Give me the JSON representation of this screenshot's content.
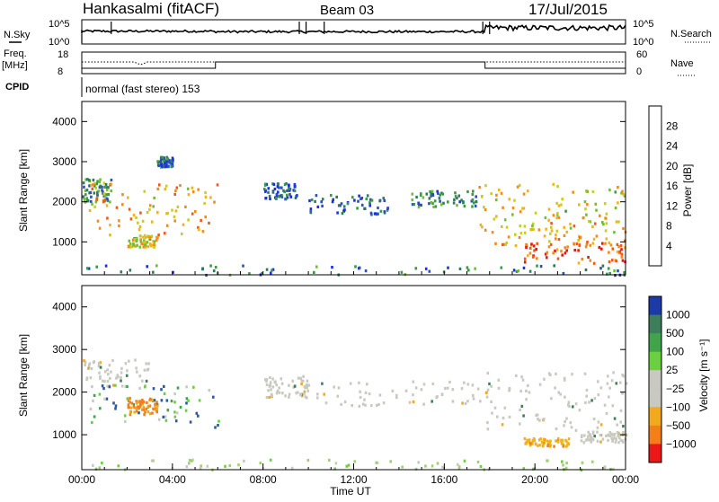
{
  "header": {
    "station": "Hankasalmi (fitACF)",
    "beam": "Beam 03",
    "date": "17/Jul/2015"
  },
  "top_panels": {
    "nsky_label": "N.Sky",
    "nsky_ticks": [
      "10^5",
      "10^0"
    ],
    "nsearch_label": "N.Search",
    "nsearch_ticks": [
      "10^5",
      "10^0"
    ],
    "freq_label_line1": "Freq.",
    "freq_label_line2": "[MHz]",
    "freq_ticks": [
      "18",
      "8"
    ],
    "nave_label": "Nave",
    "nave_ticks": [
      "60",
      "0"
    ],
    "cpid_label": "CPID",
    "cpid_value": "normal (fast stereo) 153"
  },
  "chart_data": [
    {
      "type": "heatmap",
      "name": "power",
      "ylabel": "Slant Range [km]",
      "y_ticks": [
        "1000",
        "2000",
        "3000",
        "4000"
      ],
      "y_values": [
        1000,
        2000,
        3000,
        4000
      ],
      "ylim": [
        180,
        4500
      ],
      "xlim": [
        "00:00",
        "24:00"
      ],
      "colorbar_label": "Power [dB]",
      "colorbar_ticks": [
        "4",
        "8",
        "12",
        "16",
        "20",
        "24",
        "28"
      ],
      "colorbar_colors": [
        "#1a2ee6",
        "#2b50b8",
        "#2f7a5a",
        "#3a9a48",
        "#6fbf2f",
        "#c6cf1f",
        "#f2b21a",
        "#f58a1a",
        "#ee5a18",
        "#e11a14"
      ],
      "regions": [
        {
          "t0": 0.0,
          "t1": 1.3,
          "r0": 2000,
          "r1": 2600,
          "level": 0.3
        },
        {
          "t0": 0.3,
          "t1": 6.0,
          "r0": 1200,
          "r1": 2500,
          "level": 0.7
        },
        {
          "t0": 2.0,
          "t1": 3.3,
          "r0": 900,
          "r1": 1200,
          "level": 0.6
        },
        {
          "t0": 3.3,
          "t1": 4.0,
          "r0": 2900,
          "r1": 3150,
          "level": 0.1
        },
        {
          "t0": 8.0,
          "t1": 9.5,
          "r0": 2100,
          "r1": 2500,
          "level": 0.15
        },
        {
          "t0": 10.0,
          "t1": 13.5,
          "r0": 1700,
          "r1": 2200,
          "level": 0.15
        },
        {
          "t0": 14.5,
          "t1": 17.5,
          "r0": 1900,
          "r1": 2300,
          "level": 0.25
        },
        {
          "t0": 17.5,
          "t1": 24.0,
          "r0": 1300,
          "r1": 2500,
          "level": 0.6
        },
        {
          "t0": 18.0,
          "t1": 24.0,
          "r0": 900,
          "r1": 1500,
          "level": 0.7
        },
        {
          "t0": 19.5,
          "t1": 24.0,
          "r0": 500,
          "r1": 1000,
          "level": 0.9
        },
        {
          "t0": 0.0,
          "t1": 24.0,
          "r0": 180,
          "r1": 450,
          "level": 0.2
        }
      ]
    },
    {
      "type": "heatmap",
      "name": "velocity",
      "ylabel": "Slant Range [km]",
      "y_ticks": [
        "1000",
        "2000",
        "3000",
        "4000"
      ],
      "y_values": [
        1000,
        2000,
        3000,
        4000
      ],
      "ylim": [
        180,
        4500
      ],
      "x_ticks": [
        "00:00",
        "04:00",
        "08:00",
        "12:00",
        "16:00",
        "20:00",
        "00:00"
      ],
      "xlim": [
        "00:00",
        "24:00"
      ],
      "xlabel": "Time UT",
      "colorbar_label": "Velocity [m s⁻¹]",
      "colorbar_ticks": [
        "1000",
        "500",
        "100",
        "25",
        "−25",
        "−100",
        "−500",
        "−1000"
      ],
      "colorbar_colors": [
        "#1c3aa8",
        "#3e7e5a",
        "#3fa44a",
        "#6ad040",
        "#c9c9c2",
        "#c9c9c2",
        "#f2a820",
        "#f27f1a",
        "#ea1818"
      ],
      "regions": [
        {
          "t0": 0.0,
          "t1": 3.0,
          "r0": 2100,
          "r1": 2800,
          "kind": "gray"
        },
        {
          "t0": 0.3,
          "t1": 6.0,
          "r0": 1200,
          "r1": 2200,
          "kind": "positive"
        },
        {
          "t0": 2.0,
          "t1": 3.3,
          "r0": 1500,
          "r1": 1900,
          "kind": "negative"
        },
        {
          "t0": 8.0,
          "t1": 10.0,
          "r0": 1900,
          "r1": 2400,
          "kind": "gray"
        },
        {
          "t0": 10.0,
          "t1": 17.5,
          "r0": 1700,
          "r1": 2300,
          "kind": "gray"
        },
        {
          "t0": 17.5,
          "t1": 24.0,
          "r0": 1100,
          "r1": 2500,
          "kind": "gray"
        },
        {
          "t0": 19.5,
          "t1": 21.5,
          "r0": 750,
          "r1": 950,
          "kind": "amber"
        },
        {
          "t0": 22.0,
          "t1": 24.0,
          "r0": 850,
          "r1": 1100,
          "kind": "gray"
        },
        {
          "t0": 0.0,
          "t1": 24.0,
          "r0": 180,
          "r1": 450,
          "kind": "ground"
        }
      ]
    }
  ]
}
